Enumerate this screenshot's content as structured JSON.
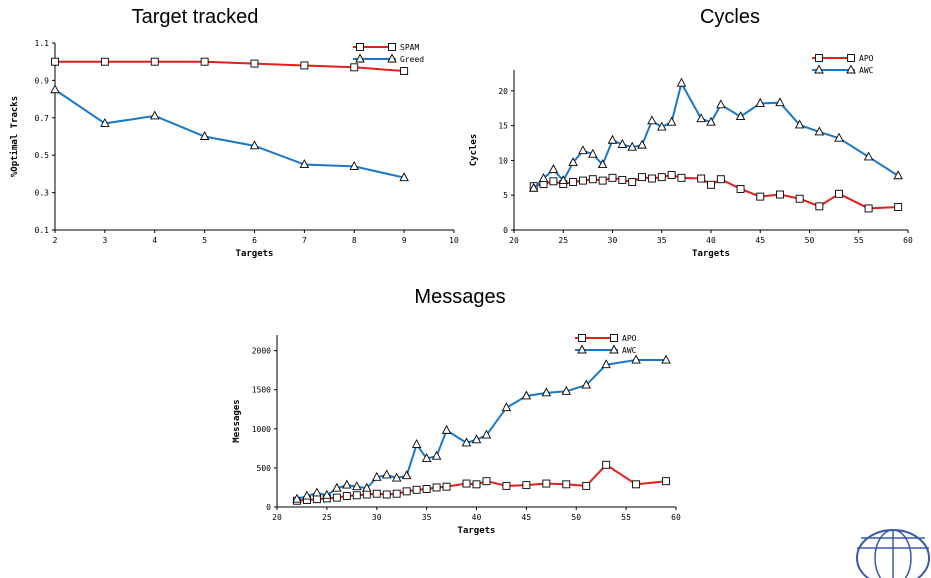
{
  "chart_data": [
    {
      "type": "line",
      "title": "Target tracked",
      "xlabel": "Targets",
      "ylabel": "%Optimal Tracks",
      "xlim": [
        2,
        10
      ],
      "ylim": [
        0.1,
        1.1
      ],
      "xticks": [
        2,
        3,
        4,
        5,
        6,
        7,
        8,
        9,
        10
      ],
      "yticks": [
        0.1,
        0.3,
        0.5,
        0.7,
        0.9,
        1.1
      ],
      "legend_position": "top-right",
      "series": [
        {
          "name": "SPAM",
          "color": "#e0201a",
          "marker": "square",
          "x": [
            2,
            3,
            4,
            5,
            6,
            7,
            8,
            9
          ],
          "y": [
            1.0,
            1.0,
            1.0,
            1.0,
            0.99,
            0.98,
            0.97,
            0.95
          ]
        },
        {
          "name": "Greed",
          "color": "#1a78c8",
          "marker": "triangle",
          "x": [
            2,
            3,
            4,
            5,
            6,
            7,
            8,
            9
          ],
          "y": [
            0.85,
            0.67,
            0.71,
            0.6,
            0.55,
            0.45,
            0.44,
            0.38
          ]
        }
      ]
    },
    {
      "type": "line",
      "title": "Cycles",
      "xlabel": "Targets",
      "ylabel": "Cycles",
      "xlim": [
        20,
        60
      ],
      "ylim": [
        0,
        23
      ],
      "xticks": [
        20,
        25,
        30,
        35,
        40,
        45,
        50,
        55,
        60
      ],
      "yticks": [
        0,
        5,
        10,
        15,
        20
      ],
      "legend_position": "top-right",
      "series": [
        {
          "name": "APO",
          "color": "#e0201a",
          "marker": "square",
          "x": [
            22,
            23,
            24,
            25,
            26,
            27,
            28,
            29,
            30,
            31,
            32,
            33,
            34,
            35,
            36,
            37,
            39,
            40,
            41,
            43,
            45,
            47,
            49,
            51,
            53,
            56,
            59
          ],
          "y": [
            6.3,
            6.6,
            7.0,
            6.6,
            6.9,
            7.1,
            7.3,
            7.1,
            7.5,
            7.2,
            6.9,
            7.6,
            7.4,
            7.6,
            7.9,
            7.5,
            7.4,
            6.5,
            7.3,
            5.9,
            4.8,
            5.1,
            4.5,
            3.4,
            5.2,
            3.1,
            3.3
          ]
        },
        {
          "name": "AWC",
          "color": "#1a78c8",
          "marker": "triangle",
          "x": [
            22,
            23,
            24,
            25,
            26,
            27,
            28,
            29,
            30,
            31,
            32,
            33,
            34,
            35,
            36,
            37,
            39,
            40,
            41,
            43,
            45,
            47,
            49,
            51,
            53,
            56,
            59
          ],
          "y": [
            6.0,
            7.4,
            8.7,
            7.1,
            9.7,
            11.4,
            10.9,
            9.4,
            12.9,
            12.3,
            11.9,
            12.2,
            15.7,
            14.8,
            15.5,
            21.1,
            16.0,
            15.5,
            18.0,
            16.3,
            18.2,
            18.3,
            15.1,
            14.1,
            13.2,
            10.5,
            7.8
          ]
        }
      ]
    },
    {
      "type": "line",
      "title": "Messages",
      "xlabel": "Targets",
      "ylabel": "Messages",
      "xlim": [
        20,
        60
      ],
      "ylim": [
        0,
        2200
      ],
      "xticks": [
        20,
        25,
        30,
        35,
        40,
        45,
        50,
        55,
        60
      ],
      "yticks": [
        0,
        500,
        1000,
        1500,
        2000
      ],
      "legend_position": "top-right",
      "series": [
        {
          "name": "APO",
          "color": "#e0201a",
          "marker": "square",
          "x": [
            22,
            23,
            24,
            25,
            26,
            27,
            28,
            29,
            30,
            31,
            32,
            33,
            34,
            35,
            36,
            37,
            39,
            40,
            41,
            43,
            45,
            47,
            49,
            51,
            53,
            56,
            59
          ],
          "y": [
            80,
            90,
            100,
            110,
            120,
            140,
            150,
            160,
            170,
            160,
            170,
            200,
            220,
            230,
            250,
            260,
            300,
            290,
            330,
            270,
            280,
            300,
            290,
            270,
            540,
            290,
            330
          ]
        },
        {
          "name": "AWC",
          "color": "#1a78c8",
          "marker": "triangle",
          "x": [
            22,
            23,
            24,
            25,
            26,
            27,
            28,
            29,
            30,
            31,
            32,
            33,
            34,
            35,
            36,
            37,
            39,
            40,
            41,
            43,
            45,
            47,
            49,
            51,
            53,
            56,
            59
          ],
          "y": [
            100,
            140,
            180,
            150,
            240,
            280,
            260,
            240,
            380,
            410,
            370,
            400,
            800,
            620,
            650,
            980,
            820,
            860,
            920,
            1270,
            1420,
            1460,
            1480,
            1560,
            1820,
            1880,
            1880
          ]
        }
      ]
    }
  ]
}
